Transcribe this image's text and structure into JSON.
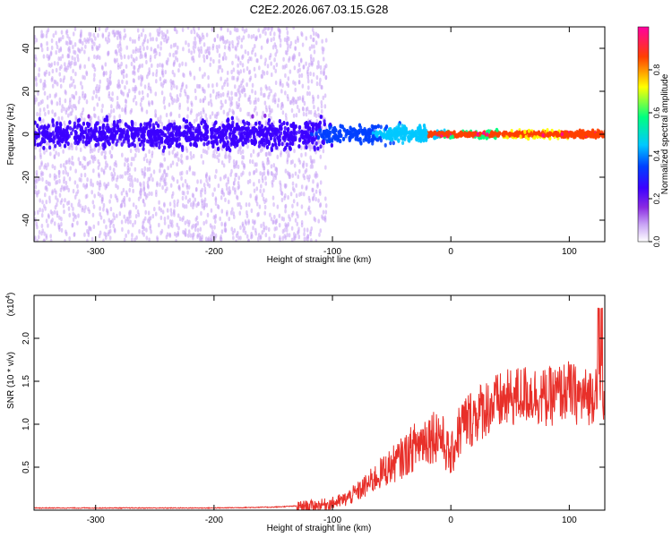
{
  "figure_title": "C2E2.2026.067.03.15.G28",
  "chart_data": [
    {
      "type": "heatmap",
      "title": "C2E2.2026.067.03.15.G28",
      "xlabel": "Height of straight line (km)",
      "ylabel": "Frequency (Hz)",
      "xlim": [
        -352,
        130
      ],
      "ylim": [
        -50,
        50
      ],
      "xticks": [
        -300,
        -200,
        -100,
        0,
        100
      ],
      "xtick_labels": [
        "-300",
        "-200",
        "-100",
        "0",
        "100"
      ],
      "yticks": [
        -40,
        -20,
        0,
        20,
        40
      ],
      "ytick_labels": [
        "-40",
        "-20",
        "0",
        "20",
        "40"
      ],
      "colorbar": {
        "label": "Normalized spectral amplitude",
        "range": [
          0,
          1
        ],
        "ticks": [
          0.0,
          0.2,
          0.4,
          0.6,
          0.8
        ],
        "tick_labels": [
          "0.0",
          "0.2",
          "0.4",
          "0.6",
          "0.8"
        ],
        "colormap": [
          "#ffffff",
          "#c9a4f5",
          "#8a2be2",
          "#3c00ff",
          "#0040ff",
          "#00c8ff",
          "#00ff80",
          "#ffff00",
          "#ff4000",
          "#ff00a0"
        ]
      },
      "description_points": {
        "noise_region_height_km": [
          -352,
          -105
        ],
        "signal_band_center_hz": 0,
        "signal_band_halfwidth_hz_low_altitude": 8,
        "signal_band_halfwidth_hz_high_altitude": 2
      }
    },
    {
      "type": "line",
      "xlabel": "Height of straight line (km)",
      "ylabel": "SNR (10 * v/v)",
      "y_multiplier_label": "(x10",
      "y_multiplier_exp": "4",
      "xlim": [
        -352,
        130
      ],
      "ylim": [
        0,
        2.5
      ],
      "xticks": [
        -300,
        -200,
        -100,
        0,
        100
      ],
      "xtick_labels": [
        "-300",
        "-200",
        "-100",
        "0",
        "100"
      ],
      "yticks": [
        0.5,
        1.0,
        1.5,
        2.0
      ],
      "ytick_labels": [
        "0.5",
        "1.0",
        "1.5",
        "2.0"
      ],
      "color": "#e8302a",
      "series": [
        {
          "name": "SNR",
          "x": [
            -352,
            -300,
            -250,
            -200,
            -150,
            -120,
            -110,
            -100,
            -90,
            -80,
            -70,
            -60,
            -50,
            -40,
            -30,
            -20,
            -10,
            0,
            5,
            10,
            20,
            30,
            40,
            50,
            60,
            70,
            80,
            90,
            100,
            110,
            120,
            125,
            130
          ],
          "y": [
            0.02,
            0.02,
            0.02,
            0.02,
            0.03,
            0.05,
            0.06,
            0.08,
            0.12,
            0.2,
            0.3,
            0.42,
            0.52,
            0.62,
            0.75,
            0.85,
            0.9,
            0.6,
            0.85,
            1.0,
            1.1,
            1.2,
            1.25,
            1.3,
            1.35,
            1.35,
            1.3,
            1.35,
            1.4,
            1.3,
            1.35,
            1.6,
            1.3
          ]
        }
      ]
    }
  ]
}
